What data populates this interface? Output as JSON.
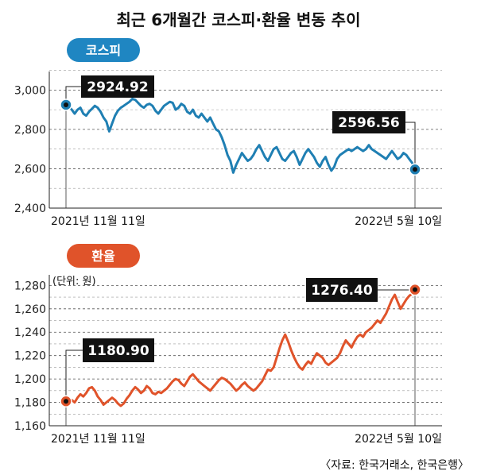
{
  "title": "최근 6개월간 코스피·환율 변동 추이",
  "source": "〈자료: 한국거래소, 한국은행〉",
  "colors": {
    "kospi": "#1f7fb3",
    "fx": "#e0532a",
    "box": "#111111",
    "badge_kospi": "#1f86c2",
    "badge_fx": "#e0532a"
  },
  "chart_data": [
    {
      "type": "line",
      "badge": "코스피",
      "x_start_label": "2021년 11월 11일",
      "x_end_label": "2022년 5월 10일",
      "ylim": [
        2400,
        3150
      ],
      "yticks": [
        2400,
        2600,
        2800,
        3000
      ],
      "ytick_labels": [
        "2,400",
        "2,600",
        "2,800",
        "3,000"
      ],
      "grid": "dashed-horizontal",
      "annotations": [
        {
          "label": "2924.92",
          "index": 0
        },
        {
          "label": "2596.56",
          "index": 121
        }
      ],
      "series": [
        {
          "values": [
            2924.92,
            2920,
            2900,
            2880,
            2900,
            2910,
            2880,
            2870,
            2890,
            2905,
            2920,
            2910,
            2890,
            2860,
            2840,
            2790,
            2830,
            2870,
            2895,
            2910,
            2920,
            2930,
            2940,
            2955,
            2950,
            2935,
            2920,
            2910,
            2925,
            2930,
            2920,
            2895,
            2880,
            2900,
            2920,
            2930,
            2940,
            2935,
            2900,
            2910,
            2930,
            2920,
            2890,
            2880,
            2900,
            2870,
            2860,
            2880,
            2860,
            2840,
            2860,
            2830,
            2800,
            2790,
            2760,
            2720,
            2670,
            2640,
            2580,
            2620,
            2650,
            2680,
            2660,
            2640,
            2650,
            2670,
            2700,
            2720,
            2690,
            2660,
            2640,
            2670,
            2700,
            2710,
            2680,
            2650,
            2640,
            2660,
            2680,
            2690,
            2660,
            2620,
            2650,
            2680,
            2700,
            2680,
            2660,
            2630,
            2610,
            2640,
            2660,
            2620,
            2590,
            2610,
            2650,
            2670,
            2680,
            2690,
            2700,
            2690,
            2700,
            2710,
            2700,
            2690,
            2700,
            2720,
            2700,
            2690,
            2680,
            2670,
            2660,
            2650,
            2670,
            2690,
            2670,
            2650,
            2660,
            2680,
            2670,
            2650,
            2630,
            2596.56
          ]
        }
      ]
    },
    {
      "type": "line",
      "badge": "환율",
      "unit_label": "(단위: 원)",
      "x_start_label": "2021년 11월 11일",
      "x_end_label": "2022년 5월 10일",
      "ylim": [
        1160,
        1285
      ],
      "yticks": [
        1160,
        1180,
        1200,
        1220,
        1240,
        1260,
        1280
      ],
      "ytick_labels": [
        "1,160",
        "1,180",
        "1,200",
        "1,220",
        "1,240",
        "1,260",
        "1,280"
      ],
      "grid": "dashed-horizontal",
      "annotations": [
        {
          "label": "1180.90",
          "index": 0
        },
        {
          "label": "1276.40",
          "index": 121
        }
      ],
      "series": [
        {
          "values": [
            1180.9,
            1179,
            1182,
            1180,
            1184,
            1187,
            1185,
            1188,
            1192,
            1193,
            1190,
            1185,
            1182,
            1178,
            1180,
            1182,
            1184,
            1182,
            1179,
            1177,
            1179,
            1183,
            1186,
            1190,
            1193,
            1191,
            1188,
            1190,
            1194,
            1192,
            1188,
            1187,
            1189,
            1188,
            1190,
            1192,
            1195,
            1198,
            1200,
            1199,
            1196,
            1194,
            1198,
            1202,
            1204,
            1201,
            1198,
            1196,
            1194,
            1192,
            1190,
            1193,
            1196,
            1199,
            1201,
            1200,
            1198,
            1196,
            1193,
            1190,
            1192,
            1195,
            1197,
            1194,
            1192,
            1190,
            1192,
            1195,
            1198,
            1203,
            1208,
            1207,
            1210,
            1218,
            1226,
            1233,
            1238,
            1232,
            1225,
            1219,
            1214,
            1210,
            1208,
            1212,
            1215,
            1213,
            1218,
            1222,
            1220,
            1218,
            1214,
            1212,
            1214,
            1216,
            1218,
            1222,
            1228,
            1233,
            1230,
            1227,
            1232,
            1236,
            1238,
            1236,
            1240,
            1242,
            1244,
            1247,
            1250,
            1248,
            1252,
            1256,
            1262,
            1268,
            1272,
            1266,
            1260,
            1264,
            1268,
            1271,
            1273,
            1276.4
          ]
        }
      ]
    }
  ]
}
